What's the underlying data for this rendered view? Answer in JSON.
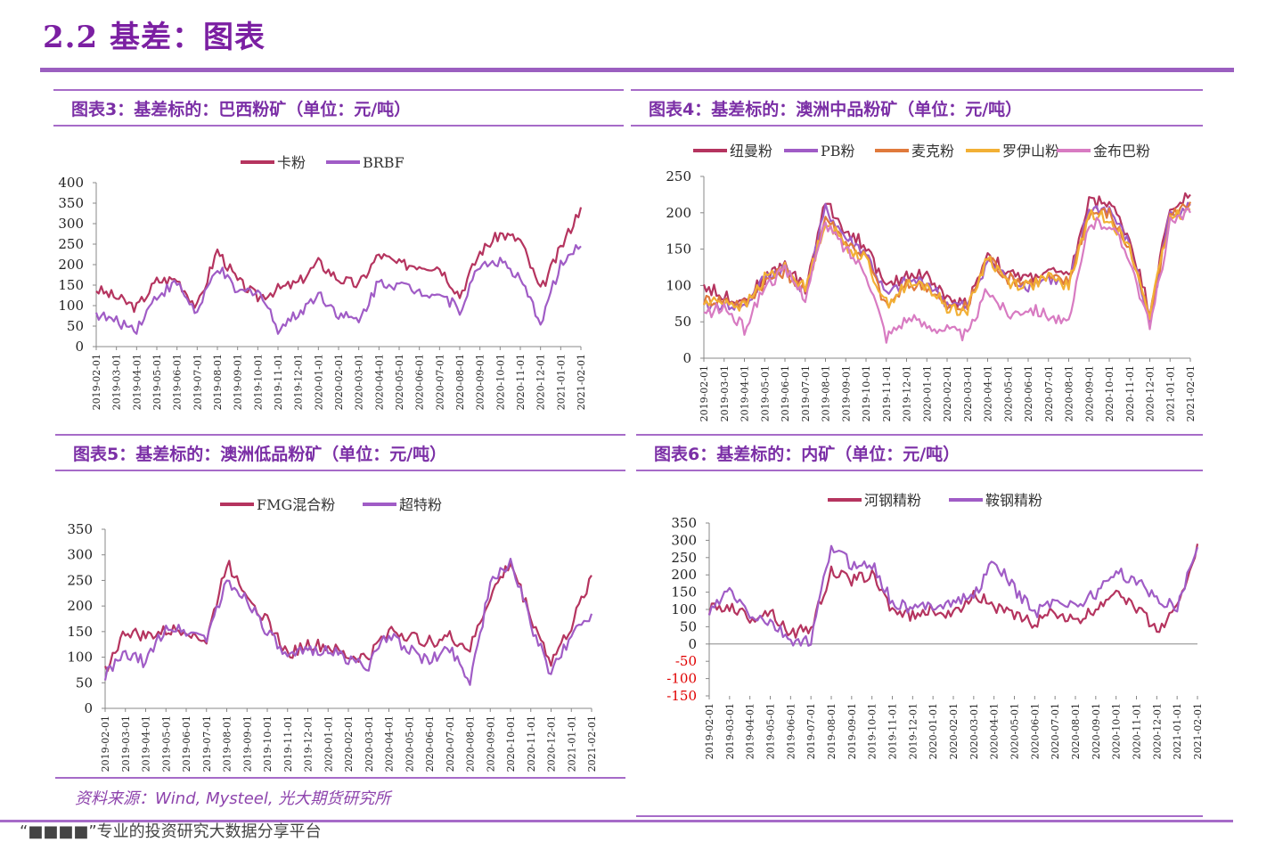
{
  "page": {
    "title": "2.2 基差：图表",
    "source": "资料来源：Wind, Mysteel, 光大期货研究所",
    "footer": "“■■■■”专业的投资研究大数据分享平台"
  },
  "colors": {
    "series_a": "#b5345f",
    "series_b": "#a05cc6",
    "series_c": "#e07a3c",
    "series_d": "#f2b035",
    "series_e": "#d87bc2",
    "title": "#7b1fa2",
    "negative_tick": "#e00000"
  },
  "date_ticks": [
    "2019-02-01",
    "2019-03-01",
    "2019-04-01",
    "2019-05-01",
    "2019-06-01",
    "2019-07-01",
    "2019-08-01",
    "2019-09-01",
    "2019-10-01",
    "2019-11-01",
    "2019-12-01",
    "2020-01-01",
    "2020-02-01",
    "2020-03-01",
    "2020-04-01",
    "2020-05-01",
    "2020-06-01",
    "2020-07-01",
    "2020-08-01",
    "2020-09-01",
    "2020-10-01",
    "2020-11-01",
    "2020-12-01",
    "2021-01-01",
    "2021-02-01"
  ],
  "chart_data": [
    {
      "id": "c3",
      "type": "line",
      "title": "图表3：基差标的：巴西粉矿（单位：元/吨）",
      "ylim": [
        0,
        400
      ],
      "yticks": [
        0,
        50,
        100,
        150,
        200,
        250,
        300,
        350,
        400
      ],
      "series": [
        {
          "name": "卡粉",
          "color": "#b5345f",
          "values": [
            140,
            120,
            95,
            160,
            165,
            95,
            235,
            160,
            120,
            140,
            155,
            205,
            165,
            150,
            225,
            200,
            200,
            195,
            125,
            230,
            275,
            260,
            135,
            240,
            340
          ]
        },
        {
          "name": "BRBF",
          "color": "#a05cc6",
          "values": [
            80,
            60,
            45,
            125,
            155,
            80,
            195,
            130,
            140,
            45,
            80,
            130,
            80,
            60,
            160,
            150,
            135,
            130,
            90,
            200,
            210,
            160,
            60,
            200,
            245
          ]
        }
      ]
    },
    {
      "id": "c4",
      "type": "line",
      "title": "图表4：基差标的：澳洲中品粉矿（单位：元/吨）",
      "ylim": [
        0,
        250
      ],
      "yticks": [
        0,
        50,
        100,
        150,
        200,
        250
      ],
      "series": [
        {
          "name": "纽曼粉",
          "color": "#b5345f",
          "values": [
            100,
            85,
            80,
            110,
            130,
            95,
            215,
            175,
            155,
            95,
            115,
            115,
            80,
            75,
            145,
            115,
            110,
            120,
            110,
            215,
            215,
            165,
            65,
            205,
            225
          ]
        },
        {
          "name": "PB粉",
          "color": "#a05cc6",
          "values": [
            70,
            75,
            70,
            110,
            125,
            90,
            205,
            165,
            145,
            85,
            105,
            105,
            75,
            70,
            135,
            110,
            100,
            110,
            100,
            205,
            205,
            155,
            50,
            200,
            210
          ]
        },
        {
          "name": "麦克粉",
          "color": "#e07a3c",
          "values": [
            80,
            80,
            75,
            105,
            120,
            90,
            195,
            160,
            140,
            70,
            100,
            100,
            70,
            70,
            140,
            110,
            105,
            110,
            105,
            200,
            200,
            150,
            55,
            195,
            215
          ]
        },
        {
          "name": "罗伊山粉",
          "color": "#f2b035",
          "values": [
            75,
            80,
            70,
            110,
            125,
            95,
            190,
            155,
            135,
            75,
            100,
            100,
            70,
            65,
            140,
            105,
            100,
            110,
            100,
            195,
            195,
            150,
            60,
            190,
            205
          ]
        },
        {
          "name": "金布巴粉",
          "color": "#d87bc2",
          "values": [
            60,
            70,
            40,
            100,
            120,
            85,
            185,
            150,
            120,
            30,
            55,
            45,
            40,
            30,
            95,
            60,
            70,
            60,
            45,
            185,
            185,
            140,
            40,
            185,
            200
          ]
        }
      ]
    },
    {
      "id": "c5",
      "type": "line",
      "title": "图表5：基差标的：澳洲低品粉矿（单位：元/吨）",
      "ylim": [
        0,
        350
      ],
      "yticks": [
        0,
        50,
        100,
        150,
        200,
        250,
        300,
        350
      ],
      "series": [
        {
          "name": "FMG混合粉",
          "color": "#b5345f",
          "values": [
            75,
            150,
            140,
            150,
            155,
            130,
            285,
            225,
            170,
            105,
            125,
            120,
            100,
            100,
            155,
            140,
            130,
            140,
            115,
            220,
            285,
            180,
            90,
            160,
            260
          ]
        },
        {
          "name": "超特粉",
          "color": "#a05cc6",
          "values": [
            65,
            105,
            90,
            160,
            150,
            140,
            245,
            215,
            150,
            95,
            115,
            115,
            95,
            85,
            145,
            115,
            90,
            120,
            55,
            240,
            290,
            165,
            65,
            145,
            185
          ]
        }
      ]
    },
    {
      "id": "c6",
      "type": "line",
      "title": "图表6：基差标的：内矿（单位：元/吨）",
      "ylim": [
        -150,
        350
      ],
      "yticks": [
        -150,
        -100,
        -50,
        0,
        50,
        100,
        150,
        200,
        250,
        300,
        350
      ],
      "series": [
        {
          "name": "河钢精粉",
          "color": "#b5345f",
          "values": [
            100,
            110,
            75,
            95,
            30,
            45,
            210,
            185,
            200,
            100,
            80,
            100,
            80,
            150,
            110,
            80,
            60,
            95,
            60,
            100,
            160,
            105,
            40,
            100,
            290
          ]
        },
        {
          "name": "鞍钢精粉",
          "color": "#a05cc6",
          "values": [
            90,
            155,
            85,
            60,
            10,
            5,
            285,
            230,
            230,
            120,
            100,
            115,
            120,
            140,
            240,
            160,
            90,
            130,
            110,
            145,
            210,
            180,
            130,
            110,
            280
          ]
        }
      ]
    }
  ]
}
